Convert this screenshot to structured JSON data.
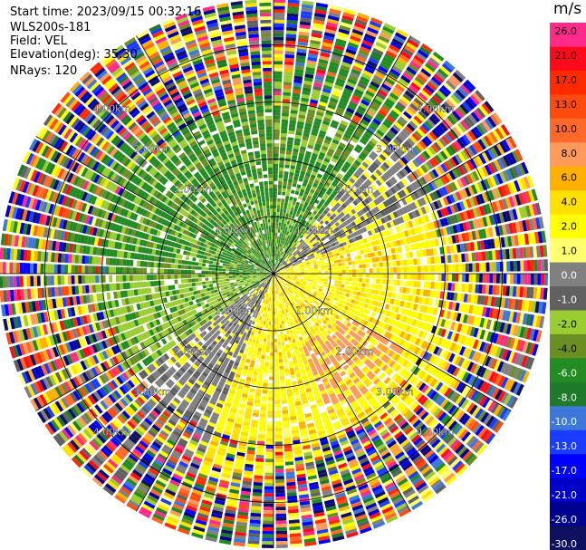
{
  "header": {
    "start_time": "Start time: 2023/09/15 00:32:16",
    "instrument": "WLS200s-181",
    "field": "Field: VEL",
    "elevation": "Elevation(deg): 35.30",
    "nrays": "NRays: 120"
  },
  "chart_data": {
    "type": "heatmap",
    "projection": "polar-ppi",
    "field": "VEL",
    "units": "m/s",
    "range_rings_km": [
      1.0,
      2.0,
      3.0,
      4.0
    ],
    "range_ring_labels": [
      "1.00km",
      "2.00km",
      "3.00km",
      "4.00km"
    ],
    "max_range_km": 4.8,
    "n_rays": 120,
    "colorbar": {
      "label": "m/s",
      "ticks": [
        "26.0",
        "21.0",
        "17.0",
        "13.0",
        "10.0",
        "8.0",
        "6.0",
        "4.0",
        "2.0",
        "1.0",
        "0.0",
        "-1.0",
        "-2.0",
        "-4.0",
        "-6.0",
        "-8.0",
        "-10.0",
        "-13.0",
        "-17.0",
        "-21.0",
        "-26.0",
        "-30.0"
      ],
      "colors": [
        "#ff2a8a",
        "#ff0a1a",
        "#ff2a00",
        "#ff4a10",
        "#ff6a2a",
        "#ff9a5a",
        "#ffb000",
        "#ffe000",
        "#ffff00",
        "#ffff70",
        "#808080",
        "#606060",
        "#9acd32",
        "#6b8e23",
        "#228b22",
        "#1e7a2a",
        "#3c78d8",
        "#1a3cff",
        "#0000ff",
        "#0000c8",
        "#000090",
        "#101060"
      ]
    }
  }
}
